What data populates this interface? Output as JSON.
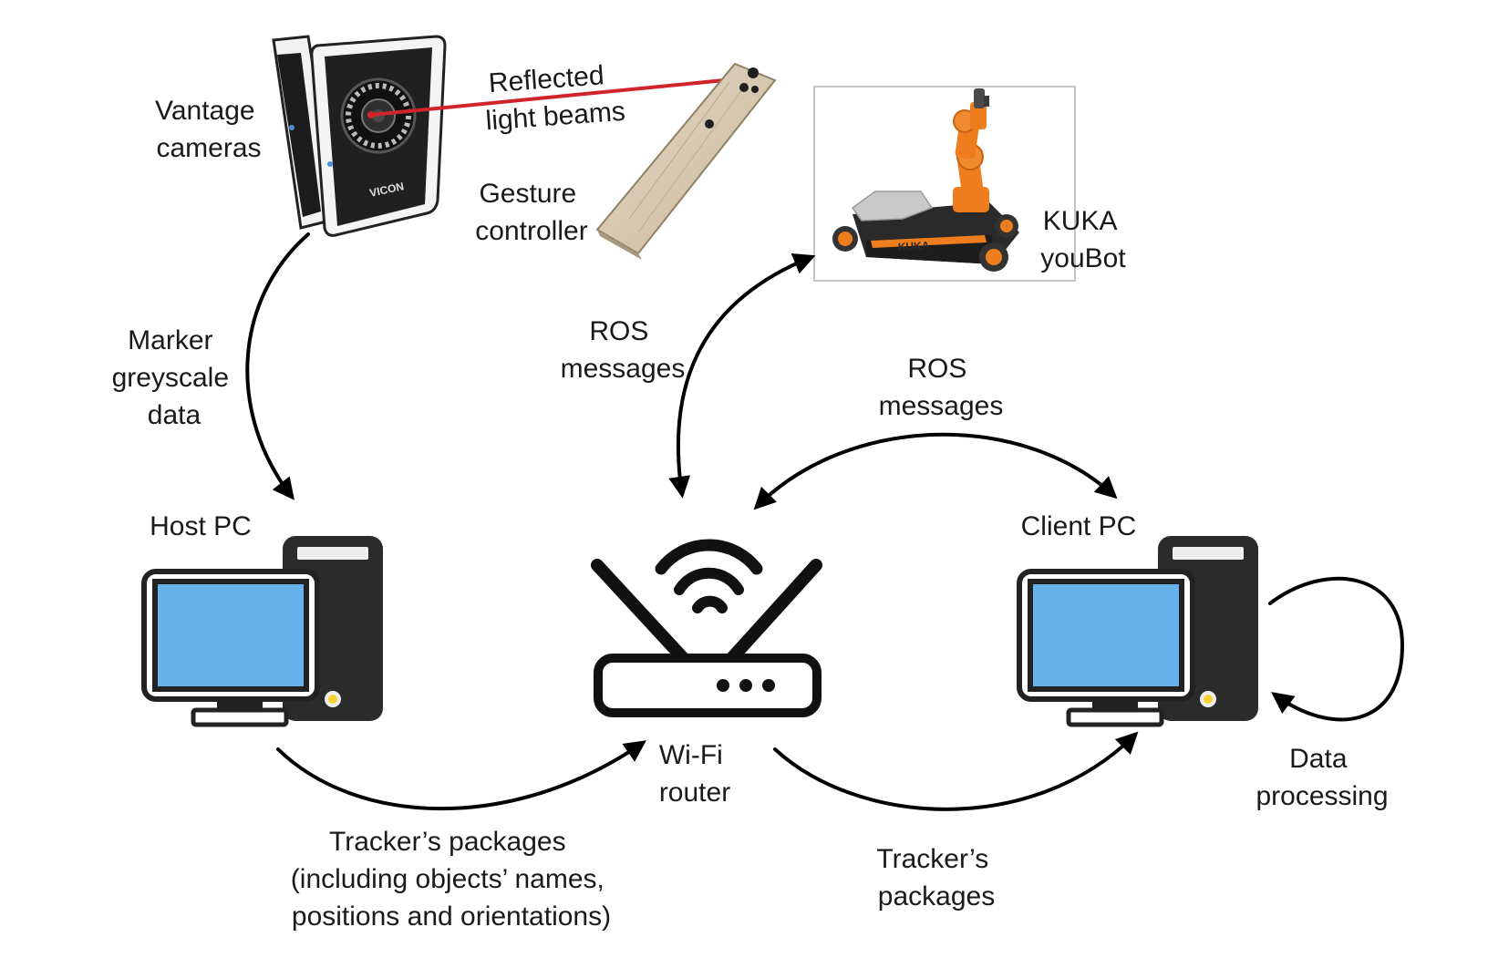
{
  "labels": {
    "vantage_cameras": [
      "Vantage",
      "cameras"
    ],
    "reflected_light_beams": [
      "Reflected",
      "light beams"
    ],
    "gesture_controller": [
      "Gesture",
      "controller"
    ],
    "kuka_youbot": [
      "KUKA",
      "youBot"
    ],
    "marker_greyscale_data": [
      "Marker",
      "greyscale",
      "data"
    ],
    "ros_messages_left": [
      "ROS",
      "messages"
    ],
    "ros_messages_right": [
      "ROS",
      "messages"
    ],
    "host_pc": "Host PC",
    "client_pc": "Client PC",
    "wifi_router": [
      "Wi-Fi",
      "router"
    ],
    "trackers_packages_long": [
      "Tracker’s packages",
      "(including objects’ names,",
      "positions and orientations)"
    ],
    "trackers_packages_short": [
      "Tracker’s",
      "packages"
    ],
    "data_processing": [
      "Data",
      "processing"
    ]
  },
  "branding": {
    "camera_logo": "VICON",
    "robot_logo": "KUKA"
  },
  "colors": {
    "monitor_screen": "#66b2ea",
    "device_body": "#2b2b2b",
    "light_beam": "#d1232a",
    "robot_orange": "#ee7d1e",
    "wood": "#d8cbb6",
    "power_led": "#f5d230"
  }
}
